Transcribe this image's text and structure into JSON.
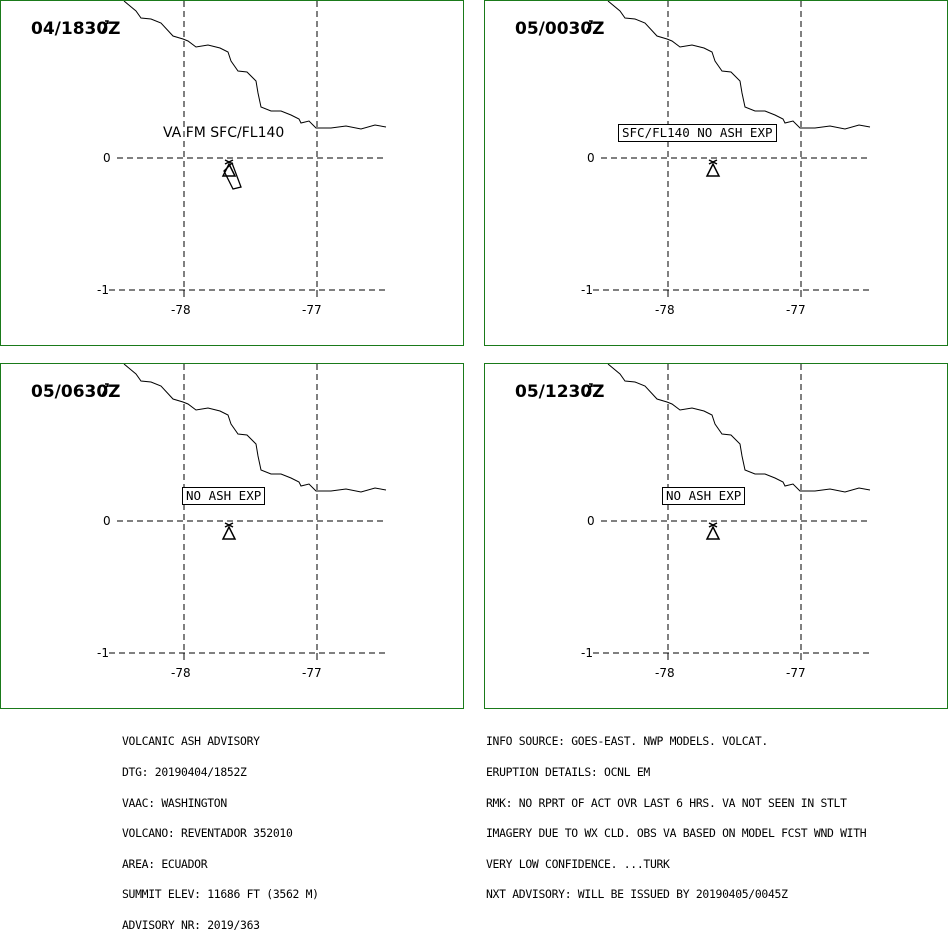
{
  "panels": [
    {
      "time": "04/1830Z",
      "label": "VA FM SFC/FL140",
      "label_boxed": false,
      "plume": true
    },
    {
      "time": "05/0030Z",
      "label": "SFC/FL140 NO ASH EXP",
      "label_boxed": true,
      "plume": false
    },
    {
      "time": "05/0630Z",
      "label": "NO ASH EXP",
      "label_boxed": true,
      "plume": false
    },
    {
      "time": "05/1230Z",
      "label": "NO ASH EXP",
      "label_boxed": true,
      "plume": false
    }
  ],
  "axes": {
    "lat_labels": [
      "0",
      "-1"
    ],
    "lon_labels": [
      "-78",
      "-77"
    ]
  },
  "map_features": [
    "coastline",
    "volcano-symbol",
    "gridlines"
  ],
  "advisory_left": [
    "VOLCANIC ASH ADVISORY",
    "DTG: 20190404/1852Z",
    "VAAC: WASHINGTON",
    "VOLCANO: REVENTADOR 352010",
    "AREA: ECUADOR",
    "SUMMIT ELEV: 11686 FT (3562 M)",
    "ADVISORY NR: 2019/363"
  ],
  "advisory_right": [
    "INFO SOURCE: GOES-EAST. NWP MODELS. VOLCAT.",
    "ERUPTION DETAILS: OCNL EM",
    "RMK: NO RPRT OF ACT OVR LAST 6 HRS. VA NOT SEEN IN STLT",
    "IMAGERY DUE TO WX CLD. OBS VA BASED ON MODEL FCST WND WITH",
    "VERY LOW CONFIDENCE. ...TURK",
    "NXT ADVISORY: WILL BE ISSUED BY 20190405/0045Z"
  ],
  "colors": {
    "panel_border": "#1a7a1a",
    "lines": "#000000",
    "background": "#ffffff"
  }
}
